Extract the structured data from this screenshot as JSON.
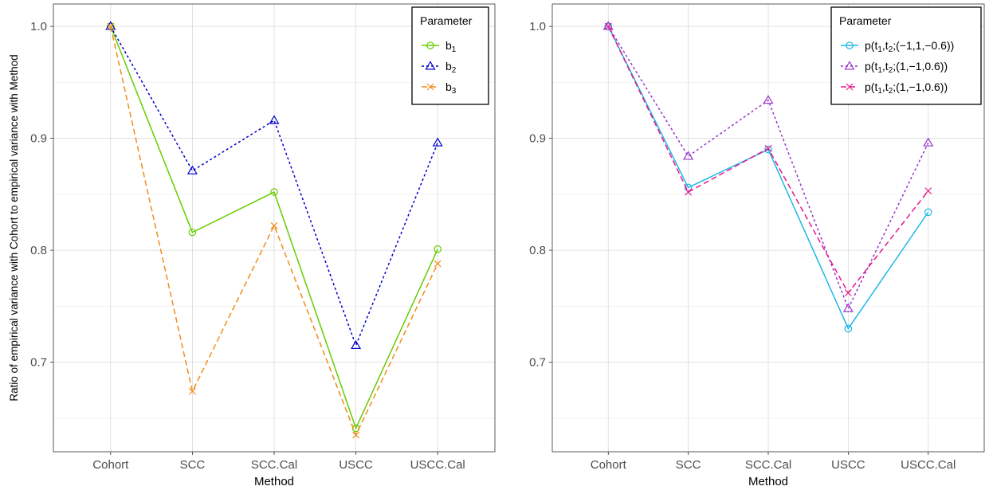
{
  "chart_data": [
    {
      "type": "line",
      "title": "",
      "xlabel": "Method",
      "ylabel": "Ratio of empirical variance with Cohort to empirical variance with Method",
      "categories": [
        "Cohort",
        "SCC",
        "SCC.Cal",
        "USCC",
        "USCC.Cal"
      ],
      "ylim": [
        0.62,
        1.02
      ],
      "yticks": [
        0.7,
        0.8,
        0.9,
        1.0
      ],
      "ytick_labels": [
        "0.7",
        "0.8",
        "0.9",
        "1.0"
      ],
      "grid": true,
      "legend": {
        "title": "Parameter",
        "placement": "top-right",
        "entries": [
          {
            "base": "b",
            "sub": "1"
          },
          {
            "base": "b",
            "sub": "2"
          },
          {
            "base": "b",
            "sub": "3"
          }
        ]
      },
      "series": [
        {
          "values": [
            1.0,
            0.816,
            0.852,
            0.641,
            0.801
          ],
          "color": "#66cc00",
          "dash": "solid",
          "marker": "circle"
        },
        {
          "values": [
            1.0,
            0.871,
            0.916,
            0.715,
            0.896
          ],
          "color": "#0000cc",
          "dash": "dotted",
          "marker": "triangle"
        },
        {
          "values": [
            1.0,
            0.674,
            0.822,
            0.635,
            0.788
          ],
          "color": "#f28c1a",
          "dash": "dashed",
          "marker": "x"
        }
      ]
    },
    {
      "type": "line",
      "title": "",
      "xlabel": "Method",
      "ylabel": "",
      "categories": [
        "Cohort",
        "SCC",
        "SCC.Cal",
        "USCC",
        "USCC.Cal"
      ],
      "ylim": [
        0.62,
        1.02
      ],
      "yticks": [
        0.7,
        0.8,
        0.9,
        1.0
      ],
      "ytick_labels": [
        "0.7",
        "0.8",
        "0.9",
        "1.0"
      ],
      "grid": true,
      "legend": {
        "title": "Parameter",
        "placement": "top-right",
        "entries": [
          {
            "parts": [
              [
                "p(t",
                ""
              ],
              [
                "1",
                "sub"
              ],
              [
                ",t",
                ""
              ],
              [
                "2",
                "sub"
              ],
              [
                ";(−1,1,−0.6))",
                ""
              ]
            ]
          },
          {
            "parts": [
              [
                "p(t",
                ""
              ],
              [
                "1",
                "sub"
              ],
              [
                ",t",
                ""
              ],
              [
                "2",
                "sub"
              ],
              [
                ";(1,−1,0.6))",
                ""
              ]
            ]
          },
          {
            "parts": [
              [
                "p(t",
                ""
              ],
              [
                "1",
                "sub"
              ],
              [
                ",t",
                ""
              ],
              [
                "2",
                "sub"
              ],
              [
                ";(1,−1,0.6))",
                ""
              ]
            ]
          }
        ]
      },
      "series": [
        {
          "values": [
            1.0,
            0.856,
            0.89,
            0.73,
            0.834
          ],
          "color": "#1fb8e6",
          "dash": "solid",
          "marker": "circle"
        },
        {
          "values": [
            1.0,
            0.884,
            0.934,
            0.748,
            0.896
          ],
          "color": "#9933cc",
          "dash": "dotted",
          "marker": "triangle"
        },
        {
          "values": [
            1.0,
            0.852,
            0.891,
            0.762,
            0.853
          ],
          "color": "#e6198c",
          "dash": "dashed",
          "marker": "x"
        }
      ]
    }
  ]
}
